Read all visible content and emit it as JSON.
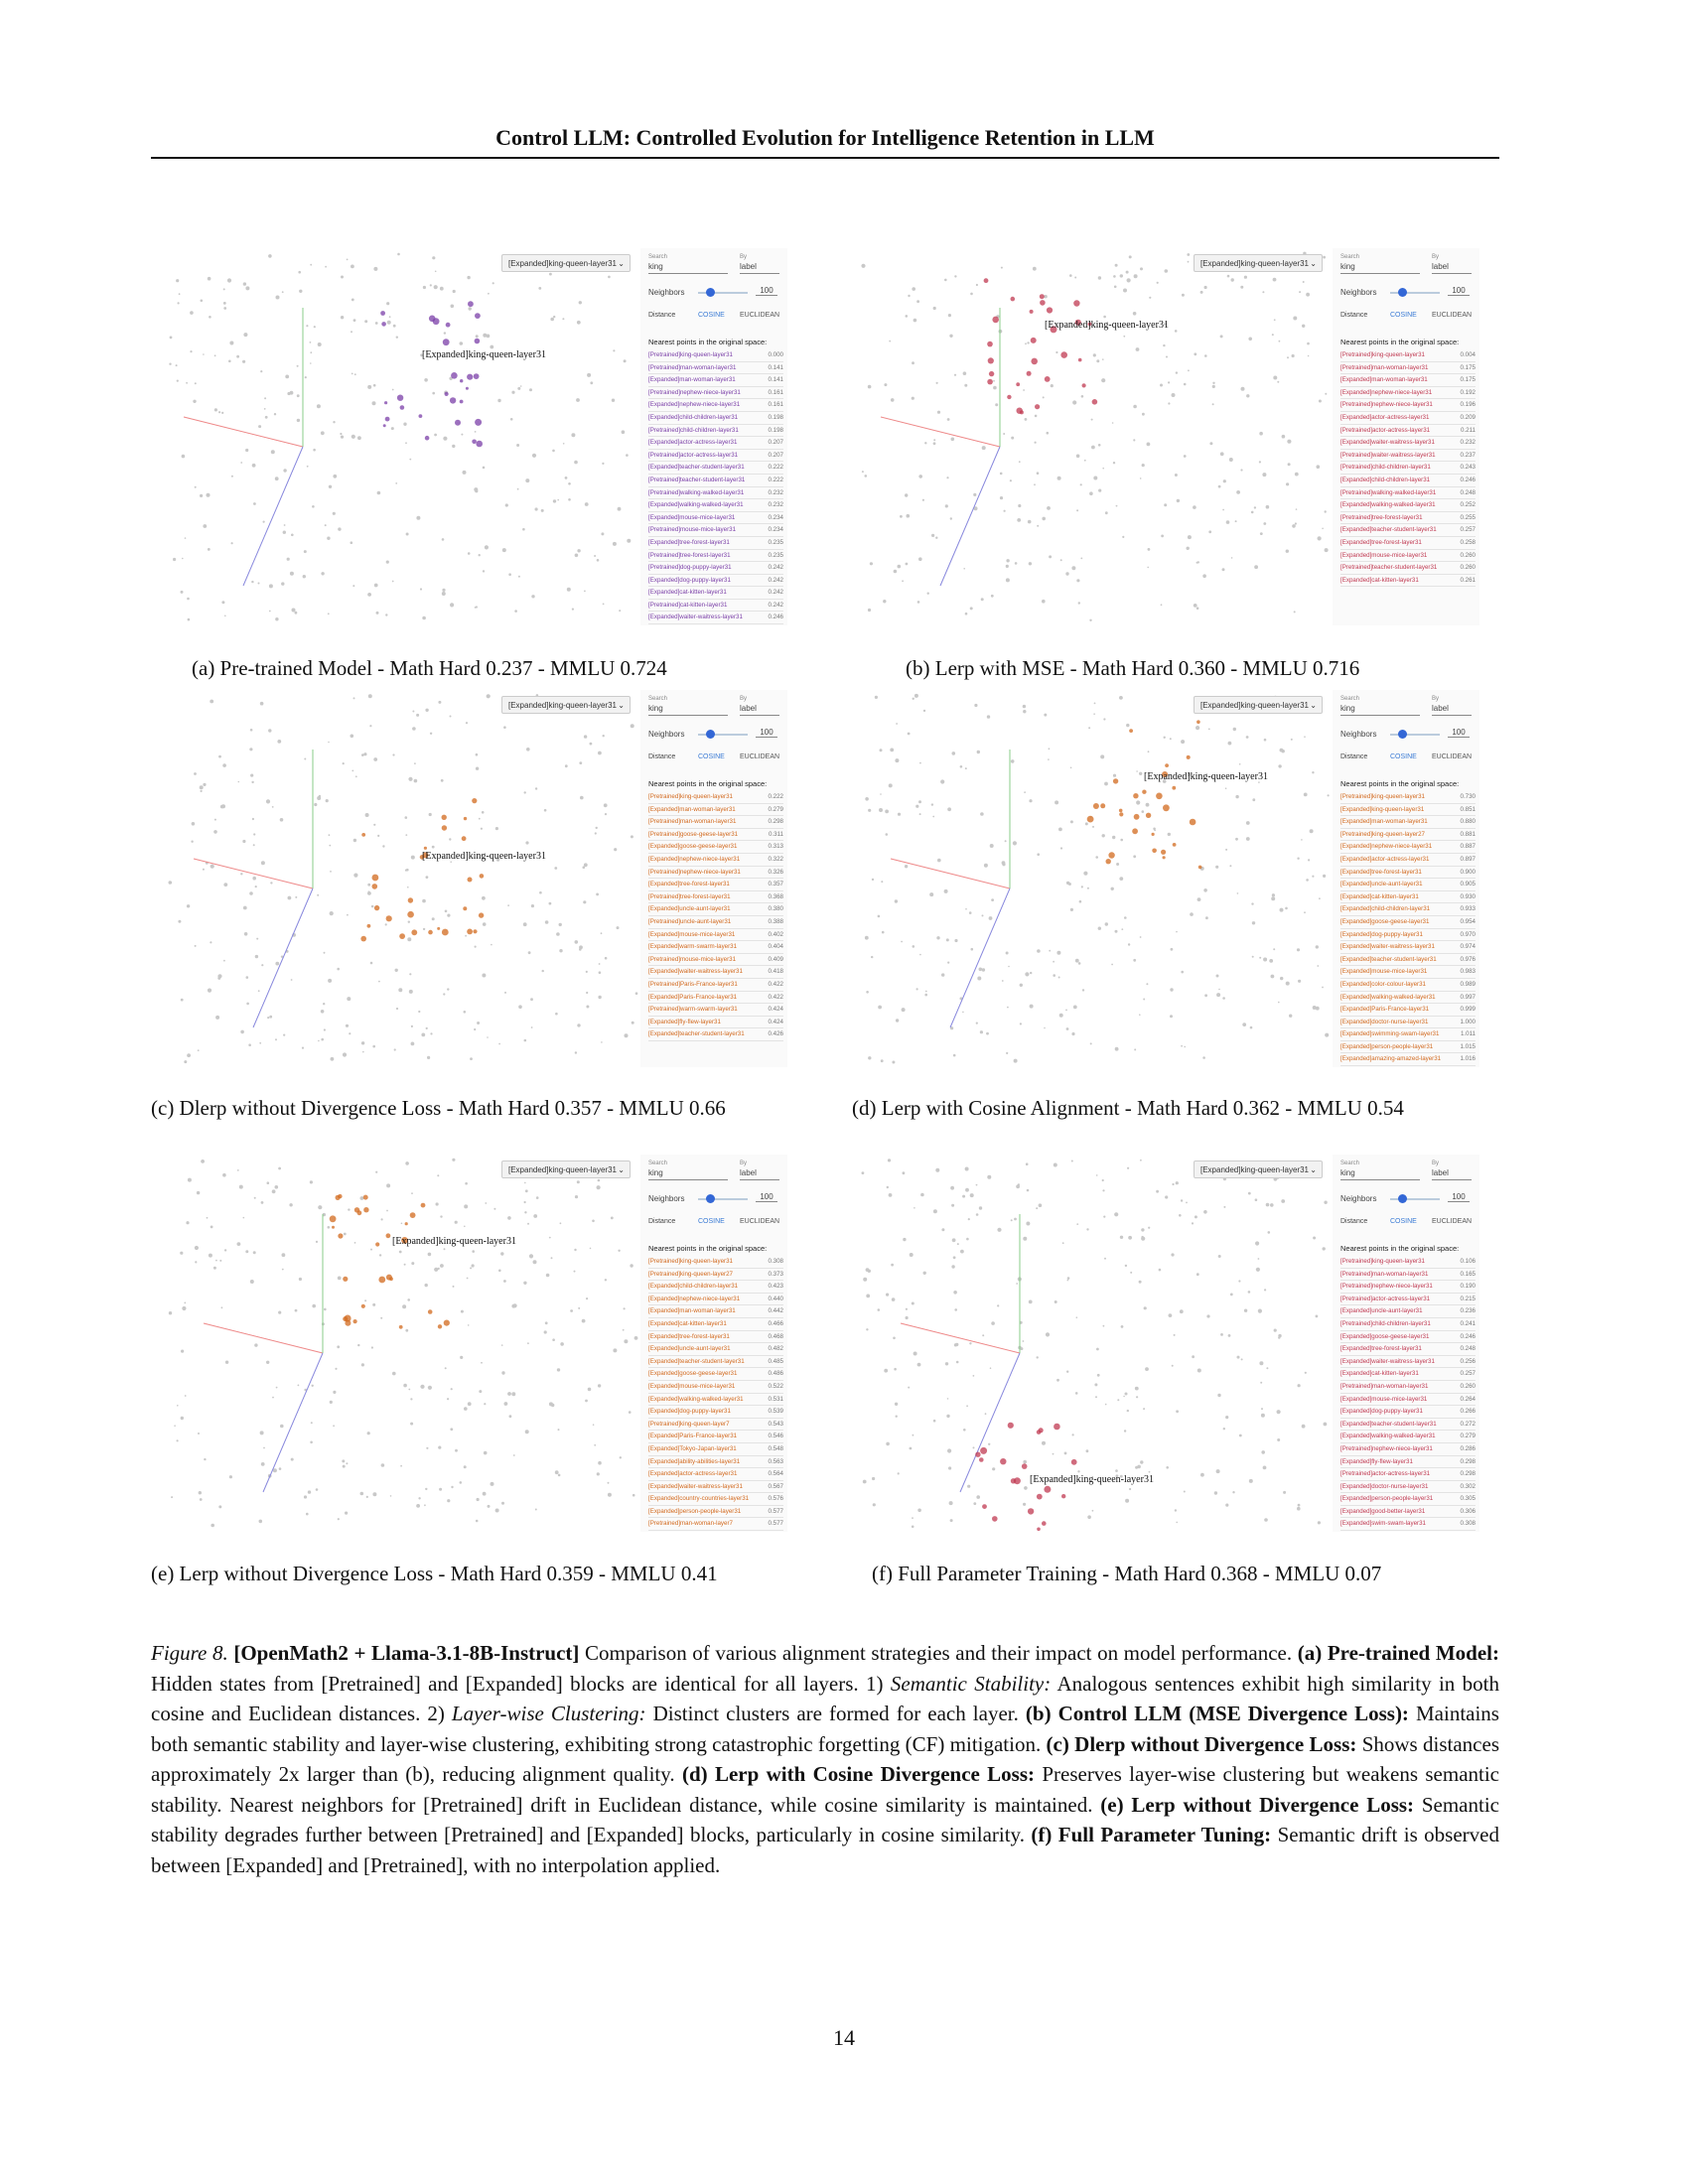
{
  "header": "Control LLM: Controlled Evolution for Intelligence Retention in LLM",
  "panel_ui": {
    "dropdown": "[Expanded]king-queen-layer31",
    "search_label": "Search",
    "search_value": "king",
    "by_label": "By",
    "by_value": "label",
    "neighbors_label": "Neighbors",
    "neighbors_value": "100",
    "distance_label": "Distance",
    "cosine": "COSINE",
    "euclidean": "EUCLIDEAN",
    "nearest_title": "Nearest points in the original space:",
    "focus_label": "[Expanded]king-queen-layer31"
  },
  "panels": [
    {
      "id": "a",
      "caption": "(a) Pre-trained Model - Math Hard 0.237 - MMLU 0.724",
      "color": "#7b3fa8",
      "neighbors": [
        {
          "name": "[Pretrained]king-queen-layer31",
          "value": "0.000"
        },
        {
          "name": "[Pretrained]man-woman-layer31",
          "value": "0.141"
        },
        {
          "name": "[Expanded]man-woman-layer31",
          "value": "0.141"
        },
        {
          "name": "[Pretrained]nephew-niece-layer31",
          "value": "0.161"
        },
        {
          "name": "[Expanded]nephew-niece-layer31",
          "value": "0.161"
        },
        {
          "name": "[Expanded]child-children-layer31",
          "value": "0.198"
        },
        {
          "name": "[Pretrained]child-children-layer31",
          "value": "0.198"
        },
        {
          "name": "[Expanded]actor-actress-layer31",
          "value": "0.207"
        },
        {
          "name": "[Pretrained]actor-actress-layer31",
          "value": "0.207"
        },
        {
          "name": "[Expanded]teacher-student-layer31",
          "value": "0.222"
        },
        {
          "name": "[Pretrained]teacher-student-layer31",
          "value": "0.222"
        },
        {
          "name": "[Pretrained]walking-walked-layer31",
          "value": "0.232"
        },
        {
          "name": "[Expanded]walking-walked-layer31",
          "value": "0.232"
        },
        {
          "name": "[Expanded]mouse-mice-layer31",
          "value": "0.234"
        },
        {
          "name": "[Pretrained]mouse-mice-layer31",
          "value": "0.234"
        },
        {
          "name": "[Expanded]tree-forest-layer31",
          "value": "0.235"
        },
        {
          "name": "[Pretrained]tree-forest-layer31",
          "value": "0.235"
        },
        {
          "name": "[Pretrained]dog-puppy-layer31",
          "value": "0.242"
        },
        {
          "name": "[Expanded]dog-puppy-layer31",
          "value": "0.242"
        },
        {
          "name": "[Expanded]cat-kitten-layer31",
          "value": "0.242"
        },
        {
          "name": "[Pretrained]cat-kitten-layer31",
          "value": "0.242"
        },
        {
          "name": "[Expanded]waiter-waitress-layer31",
          "value": "0.246"
        },
        {
          "name": "[Pretrained]waiter-waitress-layer31",
          "value": "0.246"
        },
        {
          "name": "[Expanded]bread-butter-layer31",
          "value": "0.251"
        }
      ]
    },
    {
      "id": "b",
      "caption": "(b) Lerp with MSE - Math Hard 0.360 - MMLU 0.716",
      "color": "#c03a52",
      "neighbors": [
        {
          "name": "[Pretrained]king-queen-layer31",
          "value": "0.004"
        },
        {
          "name": "[Pretrained]man-woman-layer31",
          "value": "0.175"
        },
        {
          "name": "[Expanded]man-woman-layer31",
          "value": "0.175"
        },
        {
          "name": "[Expanded]nephew-niece-layer31",
          "value": "0.192"
        },
        {
          "name": "[Pretrained]nephew-niece-layer31",
          "value": "0.196"
        },
        {
          "name": "[Expanded]actor-actress-layer31",
          "value": "0.209"
        },
        {
          "name": "[Pretrained]actor-actress-layer31",
          "value": "0.211"
        },
        {
          "name": "[Expanded]waiter-waitress-layer31",
          "value": "0.232"
        },
        {
          "name": "[Pretrained]waiter-waitress-layer31",
          "value": "0.237"
        },
        {
          "name": "[Pretrained]child-children-layer31",
          "value": "0.243"
        },
        {
          "name": "[Expanded]child-children-layer31",
          "value": "0.246"
        },
        {
          "name": "[Pretrained]walking-walked-layer31",
          "value": "0.248"
        },
        {
          "name": "[Expanded]walking-walked-layer31",
          "value": "0.252"
        },
        {
          "name": "[Pretrained]tree-forest-layer31",
          "value": "0.255"
        },
        {
          "name": "[Expanded]teacher-student-layer31",
          "value": "0.257"
        },
        {
          "name": "[Expanded]tree-forest-layer31",
          "value": "0.258"
        },
        {
          "name": "[Expanded]mouse-mice-layer31",
          "value": "0.260"
        },
        {
          "name": "[Pretrained]teacher-student-layer31",
          "value": "0.260"
        },
        {
          "name": "[Expanded]cat-kitten-layer31",
          "value": "0.261"
        }
      ]
    },
    {
      "id": "c",
      "caption": "(c) Dlerp without Divergence Loss - Math Hard 0.357 - MMLU 0.66",
      "color": "#d2691e",
      "neighbors": [
        {
          "name": "[Pretrained]king-queen-layer31",
          "value": "0.222"
        },
        {
          "name": "[Expanded]man-woman-layer31",
          "value": "0.279"
        },
        {
          "name": "[Pretrained]man-woman-layer31",
          "value": "0.298"
        },
        {
          "name": "[Pretrained]goose-geese-layer31",
          "value": "0.311"
        },
        {
          "name": "[Expanded]goose-geese-layer31",
          "value": "0.313"
        },
        {
          "name": "[Expanded]nephew-niece-layer31",
          "value": "0.322"
        },
        {
          "name": "[Pretrained]nephew-niece-layer31",
          "value": "0.326"
        },
        {
          "name": "[Expanded]tree-forest-layer31",
          "value": "0.357"
        },
        {
          "name": "[Pretrained]tree-forest-layer31",
          "value": "0.368"
        },
        {
          "name": "[Expanded]uncle-aunt-layer31",
          "value": "0.380"
        },
        {
          "name": "[Pretrained]uncle-aunt-layer31",
          "value": "0.388"
        },
        {
          "name": "[Expanded]mouse-mice-layer31",
          "value": "0.402"
        },
        {
          "name": "[Expanded]warm-swarm-layer31",
          "value": "0.404"
        },
        {
          "name": "[Pretrained]mouse-mice-layer31",
          "value": "0.409"
        },
        {
          "name": "[Expanded]waiter-waitress-layer31",
          "value": "0.418"
        },
        {
          "name": "[Pretrained]Paris-France-layer31",
          "value": "0.422"
        },
        {
          "name": "[Expanded]Paris-France-layer31",
          "value": "0.422"
        },
        {
          "name": "[Pretrained]warm-swarm-layer31",
          "value": "0.424"
        },
        {
          "name": "[Expanded]fly-flew-layer31",
          "value": "0.424"
        },
        {
          "name": "[Expanded]teacher-student-layer31",
          "value": "0.426"
        }
      ]
    },
    {
      "id": "d",
      "caption": "(d) Lerp with Cosine Alignment - Math Hard 0.362 - MMLU 0.54",
      "color": "#d2691e",
      "neighbors": [
        {
          "name": "[Pretrained]king-queen-layer31",
          "value": "0.730"
        },
        {
          "name": "[Expanded]king-queen-layer31",
          "value": "0.851"
        },
        {
          "name": "[Expanded]man-woman-layer31",
          "value": "0.880"
        },
        {
          "name": "[Pretrained]king-queen-layer27",
          "value": "0.881"
        },
        {
          "name": "[Expanded]nephew-niece-layer31",
          "value": "0.887"
        },
        {
          "name": "[Expanded]actor-actress-layer31",
          "value": "0.897"
        },
        {
          "name": "[Expanded]tree-forest-layer31",
          "value": "0.900"
        },
        {
          "name": "[Expanded]uncle-aunt-layer31",
          "value": "0.905"
        },
        {
          "name": "[Expanded]cat-kitten-layer31",
          "value": "0.930"
        },
        {
          "name": "[Expanded]child-children-layer31",
          "value": "0.933"
        },
        {
          "name": "[Expanded]goose-geese-layer31",
          "value": "0.954"
        },
        {
          "name": "[Expanded]dog-puppy-layer31",
          "value": "0.970"
        },
        {
          "name": "[Expanded]waiter-waitress-layer31",
          "value": "0.974"
        },
        {
          "name": "[Expanded]teacher-student-layer31",
          "value": "0.976"
        },
        {
          "name": "[Expanded]mouse-mice-layer31",
          "value": "0.983"
        },
        {
          "name": "[Expanded]color-colour-layer31",
          "value": "0.989"
        },
        {
          "name": "[Expanded]walking-walked-layer31",
          "value": "0.997"
        },
        {
          "name": "[Expanded]Paris-France-layer31",
          "value": "0.999"
        },
        {
          "name": "[Expanded]doctor-nurse-layer31",
          "value": "1.000"
        },
        {
          "name": "[Expanded]swimming-swam-layer31",
          "value": "1.011"
        },
        {
          "name": "[Expanded]person-people-layer31",
          "value": "1.015"
        },
        {
          "name": "[Expanded]amazing-amazed-layer31",
          "value": "1.016"
        },
        {
          "name": "[Expanded]terrifying-terrified-layer31",
          "value": "1.016"
        }
      ]
    },
    {
      "id": "e",
      "caption": "(e) Lerp without Divergence Loss - Math Hard 0.359 - MMLU 0.41",
      "color": "#d2691e",
      "neighbors": [
        {
          "name": "[Pretrained]king-queen-layer31",
          "value": "0.308"
        },
        {
          "name": "[Pretrained]king-queen-layer27",
          "value": "0.373"
        },
        {
          "name": "[Expanded]child-children-layer31",
          "value": "0.423"
        },
        {
          "name": "[Expanded]nephew-niece-layer31",
          "value": "0.440"
        },
        {
          "name": "[Expanded]man-woman-layer31",
          "value": "0.442"
        },
        {
          "name": "[Expanded]cat-kitten-layer31",
          "value": "0.466"
        },
        {
          "name": "[Expanded]tree-forest-layer31",
          "value": "0.468"
        },
        {
          "name": "[Expanded]uncle-aunt-layer31",
          "value": "0.482"
        },
        {
          "name": "[Expanded]teacher-student-layer31",
          "value": "0.485"
        },
        {
          "name": "[Expanded]goose-geese-layer31",
          "value": "0.486"
        },
        {
          "name": "[Expanded]mouse-mice-layer31",
          "value": "0.522"
        },
        {
          "name": "[Expanded]walking-walked-layer31",
          "value": "0.531"
        },
        {
          "name": "[Expanded]dog-puppy-layer31",
          "value": "0.539"
        },
        {
          "name": "[Pretrained]king-queen-layer7",
          "value": "0.543"
        },
        {
          "name": "[Expanded]Paris-France-layer31",
          "value": "0.546"
        },
        {
          "name": "[Expanded]Tokyo-Japan-layer31",
          "value": "0.548"
        },
        {
          "name": "[Expanded]ability-abilities-layer31",
          "value": "0.563"
        },
        {
          "name": "[Expanded]actor-actress-layer31",
          "value": "0.564"
        },
        {
          "name": "[Expanded]waiter-waitress-layer31",
          "value": "0.567"
        },
        {
          "name": "[Expanded]country-countries-layer31",
          "value": "0.576"
        },
        {
          "name": "[Expanded]person-people-layer31",
          "value": "0.577"
        },
        {
          "name": "[Pretrained]man-woman-layer7",
          "value": "0.577"
        },
        {
          "name": "[Expanded]bush-thistle-layer31",
          "value": "0.589"
        }
      ]
    },
    {
      "id": "f",
      "caption": "(f) Full Parameter Training - Math Hard 0.368 - MMLU 0.07",
      "color": "#c03a52",
      "neighbors": [
        {
          "name": "[Pretrained]king-queen-layer31",
          "value": "0.106"
        },
        {
          "name": "[Pretrained]man-woman-layer31",
          "value": "0.165"
        },
        {
          "name": "[Pretrained]nephew-niece-layer31",
          "value": "0.190"
        },
        {
          "name": "[Pretrained]actor-actress-layer31",
          "value": "0.215"
        },
        {
          "name": "[Expanded]uncle-aunt-layer31",
          "value": "0.236"
        },
        {
          "name": "[Pretrained]child-children-layer31",
          "value": "0.241"
        },
        {
          "name": "[Expanded]goose-geese-layer31",
          "value": "0.246"
        },
        {
          "name": "[Expanded]tree-forest-layer31",
          "value": "0.248"
        },
        {
          "name": "[Expanded]waiter-waitress-layer31",
          "value": "0.256"
        },
        {
          "name": "[Expanded]cat-kitten-layer31",
          "value": "0.257"
        },
        {
          "name": "[Pretrained]man-woman-layer31",
          "value": "0.260"
        },
        {
          "name": "[Expanded]mouse-mice-layer31",
          "value": "0.264"
        },
        {
          "name": "[Expanded]dog-puppy-layer31",
          "value": "0.266"
        },
        {
          "name": "[Expanded]teacher-student-layer31",
          "value": "0.272"
        },
        {
          "name": "[Expanded]walking-walked-layer31",
          "value": "0.279"
        },
        {
          "name": "[Pretrained]nephew-niece-layer31",
          "value": "0.286"
        },
        {
          "name": "[Expanded]fly-flew-layer31",
          "value": "0.298"
        },
        {
          "name": "[Pretrained]actor-actress-layer31",
          "value": "0.298"
        },
        {
          "name": "[Expanded]doctor-nurse-layer31",
          "value": "0.302"
        },
        {
          "name": "[Expanded]person-people-layer31",
          "value": "0.305"
        },
        {
          "name": "[Expanded]good-better-layer31",
          "value": "0.306"
        },
        {
          "name": "[Expanded]swim-swam-layer31",
          "value": "0.308"
        },
        {
          "name": "[Expanded]ability-abilities-layer31",
          "value": "0.311"
        }
      ]
    }
  ],
  "figure_caption": {
    "fig_label": "Figure 8.",
    "bold_title": "[OpenMath2 + Llama-3.1-8B-Instruct]",
    "intro": " Comparison of various alignment strategies and their impact on model performance.",
    "a_label": "(a) Pre-trained Model:",
    "a_text": " Hidden states from [Pretrained] and [Expanded] blocks are identical for all layers.  1) ",
    "a_sem": "Semantic Stability:",
    "a_text2": " Analogous sentences exhibit high similarity in both cosine and Euclidean distances. 2) ",
    "a_layer": "Layer-wise Clustering:",
    "a_text3": " Distinct clusters are formed for each layer. ",
    "b_label": "(b) Control LLM (MSE Divergence Loss):",
    "b_text": " Maintains both semantic stability and layer-wise clustering, exhibiting strong catastrophic forgetting (CF) mitigation. ",
    "c_label": "(c) Dlerp without Divergence Loss:",
    "c_text": " Shows distances approximately 2x larger than (b), reducing alignment quality. ",
    "d_label": "(d) Lerp with Cosine Divergence Loss:",
    "d_text": " Preserves layer-wise clustering but weakens semantic stability. Nearest neighbors for [Pretrained] drift in Euclidean distance, while cosine similarity is maintained. ",
    "e_label": "(e) Lerp without Divergence Loss:",
    "e_text": " Semantic stability degrades further between [Pretrained] and [Expanded] blocks, particularly in cosine similarity. ",
    "f_label": "(f) Full Parameter Tuning:",
    "f_text": " Semantic drift is observed between [Expanded] and [Pretrained], with no interpolation applied."
  },
  "page_number": "14"
}
